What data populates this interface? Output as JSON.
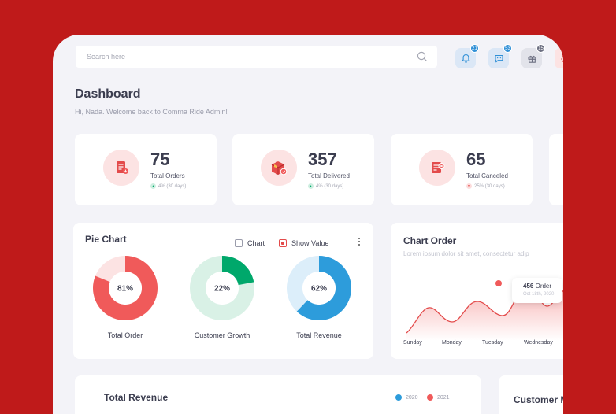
{
  "search": {
    "placeholder": "Search here"
  },
  "header_icons": [
    {
      "name": "bell-icon",
      "badge": "21",
      "bg": "#dbe7f6",
      "color": "#2f8fd6"
    },
    {
      "name": "chat-icon",
      "badge": "53",
      "bg": "#dbe7f6",
      "color": "#2f8fd6"
    },
    {
      "name": "gift-icon",
      "badge": "15",
      "bg": "#e2e3ea",
      "color": "#6b6e80"
    },
    {
      "name": "gear-icon",
      "badge": "",
      "bg": "#fce3e3",
      "color": "#e34b4b"
    }
  ],
  "page": {
    "title": "Dashboard",
    "subtitle": "Hi, Nada. Welcome back  to Comma Ride Admin!"
  },
  "stats": [
    {
      "value": "75",
      "label": "Total Orders",
      "change": "4% (30 days)",
      "trend": "up",
      "icon": "orders-icon"
    },
    {
      "value": "357",
      "label": "Total Delivered",
      "change": "4% (30 days)",
      "trend": "up",
      "icon": "delivered-box-icon"
    },
    {
      "value": "65",
      "label": "Total Canceled",
      "change": "25% (30 days)",
      "trend": "down",
      "icon": "canceled-icon"
    }
  ],
  "pie_chart": {
    "title": "Pie Chart",
    "options": [
      {
        "label": "Chart",
        "checked": false
      },
      {
        "label": "Show Value",
        "checked": true
      }
    ],
    "donuts": [
      {
        "percent": 81,
        "label": "Total Order",
        "value_text": "81%",
        "color": "#f05a5a",
        "track": "#fce3e3"
      },
      {
        "percent": 22,
        "label": "Customer Growth",
        "value_text": "22%",
        "color": "#00a86b",
        "track": "#d9f1e6"
      },
      {
        "percent": 62,
        "label": "Total Revenue",
        "value_text": "62%",
        "color": "#2d9cdb",
        "track": "#dceefa"
      }
    ]
  },
  "chart_order": {
    "title": "Chart Order",
    "subtitle": "Lorem ipsum dolor sit amet, consectetur adip",
    "days": [
      "Sunday",
      "Monday",
      "Tuesday",
      "Wednesday"
    ],
    "tooltip": {
      "value": "456",
      "unit": "Order",
      "date": "Oct 18th, 2020"
    }
  },
  "chart_data": {
    "type": "area",
    "x": [
      "Sunday",
      "Monday",
      "Tuesday",
      "Wednesday"
    ],
    "series": [
      {
        "values": [
          120,
          250,
          456,
          210
        ]
      }
    ],
    "grid": false
  },
  "total_revenue": {
    "title": "Total Revenue",
    "legend": [
      {
        "label": "2020",
        "color": "#2d9cdb"
      },
      {
        "label": "2021",
        "color": "#f05a5a"
      }
    ]
  },
  "customer_map": {
    "title": "Customer Map"
  }
}
